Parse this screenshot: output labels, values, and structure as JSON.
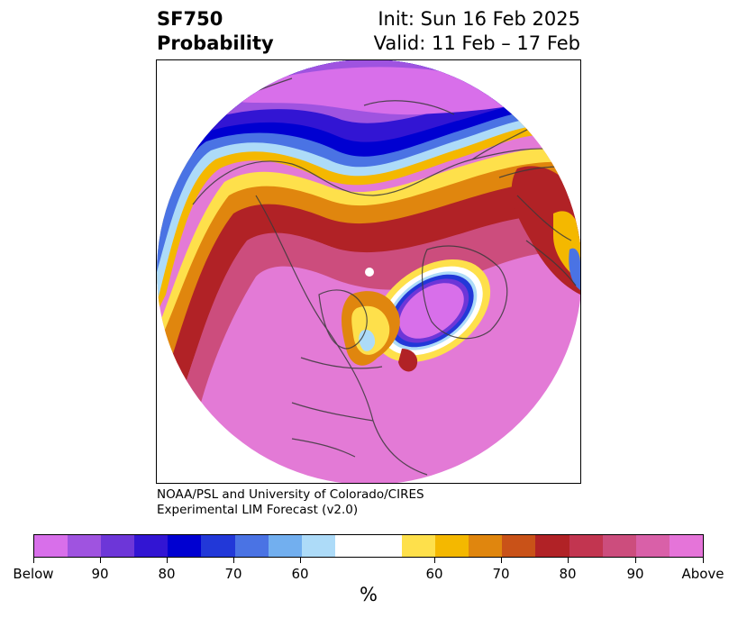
{
  "header": {
    "title_line1": "SF750",
    "title_line2": "Probability",
    "init_text": "Init: Sun 16 Feb 2025",
    "valid_text": "Valid: 11 Feb – 17 Feb"
  },
  "credit": {
    "line1": "NOAA/PSL and University of Colorado/CIRES",
    "line2": "Experimental LIM Forecast (v2.0)"
  },
  "colorbar": {
    "unit": "%",
    "colors": [
      "#d86fea",
      "#9f53e0",
      "#6d36d8",
      "#3215d3",
      "#0000d1",
      "#2238d8",
      "#4a73e4",
      "#72afef",
      "#addbf8",
      "#ffffff",
      "#fee04b",
      "#f4b800",
      "#e0860e",
      "#c95218",
      "#b12226",
      "#c23550",
      "#cc4d7d",
      "#d960a8",
      "#e574d9"
    ],
    "tick_labels": [
      "Below",
      "90",
      "80",
      "70",
      "60",
      "60",
      "70",
      "80",
      "90",
      "Above"
    ]
  },
  "map": {
    "projection": "north-polar-stereographic",
    "background_fill": "#e37ad6",
    "below_colors": [
      "#d86fea",
      "#9f53e0",
      "#3215d3",
      "#0000d1",
      "#4a73e4",
      "#addbf8"
    ],
    "above_colors": [
      "#fee04b",
      "#f4b800",
      "#e0860e",
      "#b12226",
      "#cc4d7d"
    ]
  }
}
